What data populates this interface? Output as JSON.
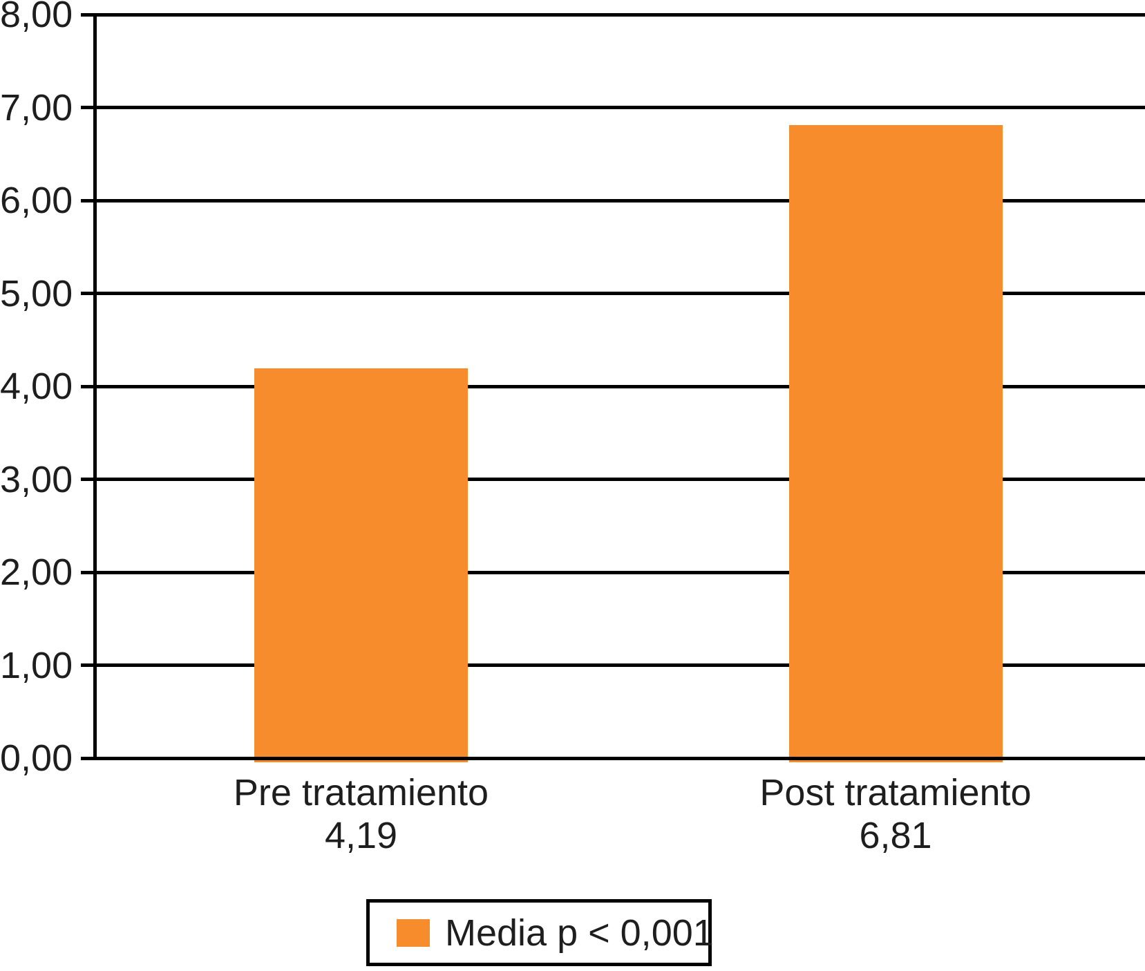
{
  "chart_data": {
    "type": "bar",
    "title": "",
    "categories": [
      "Pre tratamiento",
      "Post tratamiento"
    ],
    "values": [
      4.19,
      6.81
    ],
    "value_labels": [
      "4,19",
      "6,81"
    ],
    "y_axis": {
      "min": 0,
      "max": 8,
      "step": 1,
      "tick_labels": [
        "0,00",
        "1,00",
        "2,00",
        "3,00",
        "4,00",
        "5,00",
        "6,00",
        "7,00",
        "8,00"
      ]
    },
    "grid": true,
    "gridline_color": "#000000",
    "legend": {
      "label": "Media p < 0,001",
      "position": "bottom-center"
    },
    "colors": {
      "bar": "#F68C2B",
      "line": "#000000",
      "text": "#1E1E1E"
    }
  }
}
